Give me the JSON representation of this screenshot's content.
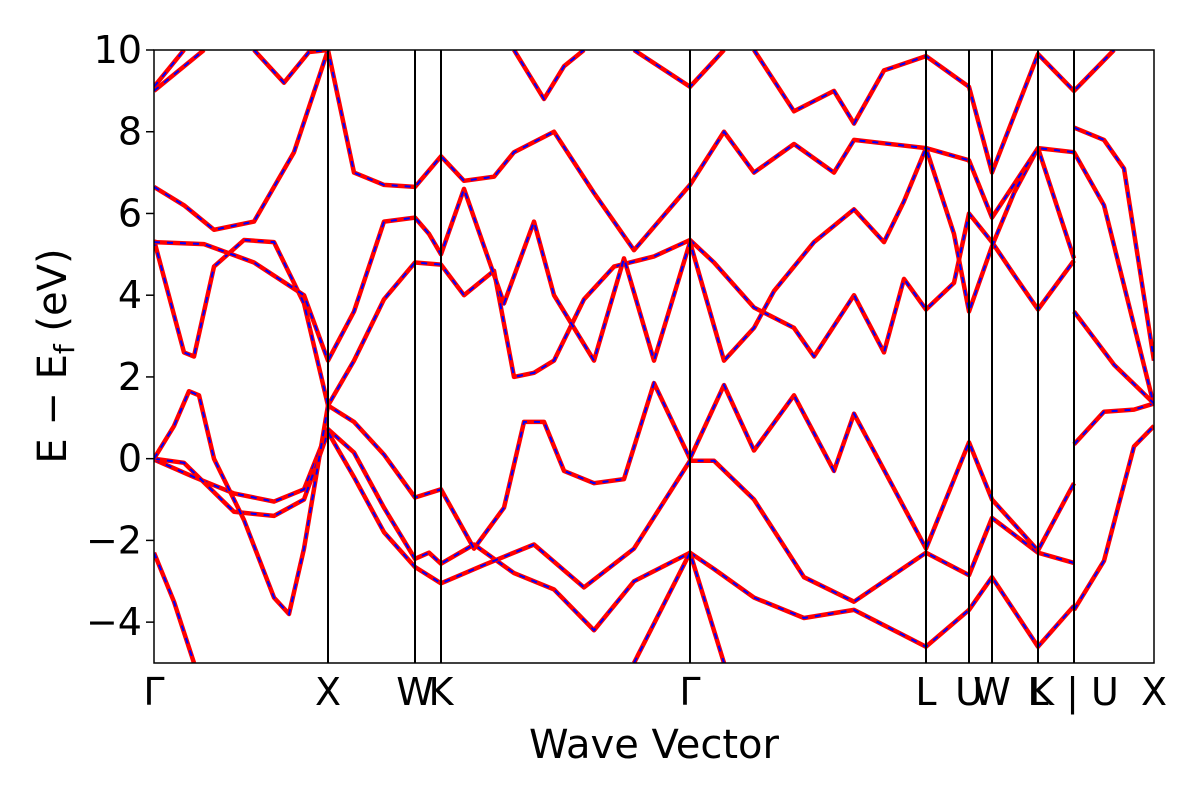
{
  "chart_data": {
    "type": "line",
    "title": "",
    "xlabel": "Wave Vector",
    "ylabel": "E − E",
    "ylabel_subscript": "f",
    "ylabel_unit": " (eV)",
    "ylim": [
      -5,
      10
    ],
    "yticks": [
      {
        "value": 10,
        "label": "10"
      },
      {
        "value": 8,
        "label": "8"
      },
      {
        "value": 6,
        "label": "6"
      },
      {
        "value": 4,
        "label": "4"
      },
      {
        "value": 2,
        "label": "2"
      },
      {
        "value": 0,
        "label": "0"
      },
      {
        "value": -2,
        "label": "−2"
      },
      {
        "value": -4,
        "label": "−4"
      }
    ],
    "xlim": [
      0,
      1
    ],
    "kpoints": [
      {
        "label": "Γ",
        "x": 0.0
      },
      {
        "label": "X",
        "x": 0.174
      },
      {
        "label": "W",
        "x": 0.261
      },
      {
        "label": "K",
        "x": 0.287
      },
      {
        "label": "Γ",
        "x": 0.536
      },
      {
        "label": "L",
        "x": 0.772
      },
      {
        "label": "U",
        "x": 0.815
      },
      {
        "label": "W",
        "x": 0.838
      },
      {
        "label": "L",
        "x": 0.884
      },
      {
        "label": "K | U",
        "x": 0.92
      },
      {
        "label": "X",
        "x": 1.0
      }
    ],
    "colors": {
      "band": "#ff0000",
      "band_dashed": "#0000ff",
      "frame": "#000000"
    },
    "grid": false,
    "legend": "none",
    "series": [
      {
        "points": [
          [
            0.0,
            -0.02
          ],
          [
            0.04,
            -0.45
          ],
          [
            0.08,
            -0.85
          ],
          [
            0.12,
            -1.05
          ],
          [
            0.15,
            -0.75
          ],
          [
            0.174,
            0.72
          ],
          [
            0.2,
            0.15
          ],
          [
            0.23,
            -1.2
          ],
          [
            0.261,
            -2.45
          ],
          [
            0.275,
            -2.3
          ],
          [
            0.287,
            -2.57
          ],
          [
            0.32,
            -2.1
          ],
          [
            0.36,
            -2.8
          ],
          [
            0.4,
            -3.2
          ],
          [
            0.44,
            -4.2
          ],
          [
            0.48,
            -3.0
          ],
          [
            0.536,
            -2.3
          ],
          [
            0.56,
            -2.7
          ],
          [
            0.6,
            -3.4
          ],
          [
            0.65,
            -3.9
          ],
          [
            0.7,
            -3.7
          ],
          [
            0.772,
            -4.6
          ],
          [
            0.815,
            -3.7
          ],
          [
            0.838,
            -2.9
          ],
          [
            0.884,
            -4.6
          ],
          [
            0.92,
            -3.6
          ]
        ]
      },
      {
        "points": [
          [
            0.0,
            0.0
          ],
          [
            0.03,
            -0.1
          ],
          [
            0.08,
            -1.3
          ],
          [
            0.12,
            -1.4
          ],
          [
            0.15,
            -1.0
          ],
          [
            0.174,
            0.65
          ],
          [
            0.2,
            -0.45
          ],
          [
            0.23,
            -1.8
          ],
          [
            0.261,
            -2.65
          ],
          [
            0.287,
            -3.05
          ],
          [
            0.33,
            -2.6
          ],
          [
            0.38,
            -2.1
          ],
          [
            0.43,
            -3.15
          ],
          [
            0.48,
            -2.2
          ],
          [
            0.536,
            -0.05
          ],
          [
            0.56,
            -0.05
          ],
          [
            0.6,
            -1.0
          ],
          [
            0.65,
            -2.9
          ],
          [
            0.7,
            -3.5
          ],
          [
            0.772,
            -2.3
          ],
          [
            0.815,
            -2.85
          ],
          [
            0.838,
            -1.45
          ],
          [
            0.884,
            -2.3
          ],
          [
            0.92,
            -2.55
          ]
        ]
      },
      {
        "points": [
          [
            0.0,
            0.0
          ],
          [
            0.02,
            0.8
          ],
          [
            0.035,
            1.65
          ],
          [
            0.045,
            1.55
          ],
          [
            0.06,
            0.0
          ],
          [
            0.09,
            -1.5
          ],
          [
            0.12,
            -3.4
          ],
          [
            0.135,
            -3.8
          ],
          [
            0.15,
            -2.2
          ],
          [
            0.174,
            1.3
          ],
          [
            0.2,
            0.9
          ],
          [
            0.23,
            0.1
          ],
          [
            0.261,
            -0.95
          ],
          [
            0.287,
            -0.75
          ],
          [
            0.32,
            -2.2
          ],
          [
            0.35,
            -1.2
          ],
          [
            0.37,
            0.9
          ],
          [
            0.39,
            0.9
          ],
          [
            0.41,
            -0.3
          ],
          [
            0.44,
            -0.6
          ],
          [
            0.47,
            -0.5
          ],
          [
            0.5,
            1.85
          ],
          [
            0.536,
            0.0
          ],
          [
            0.57,
            1.8
          ],
          [
            0.6,
            0.2
          ],
          [
            0.64,
            1.55
          ],
          [
            0.68,
            -0.3
          ],
          [
            0.7,
            1.1
          ],
          [
            0.772,
            -2.2
          ],
          [
            0.815,
            0.4
          ],
          [
            0.838,
            -1.0
          ],
          [
            0.884,
            -2.25
          ],
          [
            0.92,
            -0.6
          ]
        ]
      },
      {
        "points": [
          [
            0.0,
            5.35
          ],
          [
            0.03,
            2.6
          ],
          [
            0.04,
            2.5
          ],
          [
            0.06,
            4.7
          ],
          [
            0.09,
            5.35
          ],
          [
            0.12,
            5.3
          ],
          [
            0.15,
            3.8
          ],
          [
            0.174,
            1.3
          ],
          [
            0.2,
            2.4
          ],
          [
            0.23,
            3.9
          ],
          [
            0.261,
            4.8
          ],
          [
            0.287,
            4.75
          ],
          [
            0.31,
            4.0
          ],
          [
            0.34,
            4.6
          ],
          [
            0.36,
            2.0
          ],
          [
            0.38,
            2.1
          ],
          [
            0.4,
            2.4
          ],
          [
            0.43,
            3.9
          ],
          [
            0.46,
            4.7
          ],
          [
            0.5,
            4.95
          ],
          [
            0.536,
            5.35
          ],
          [
            0.56,
            4.8
          ],
          [
            0.6,
            3.7
          ],
          [
            0.64,
            3.2
          ],
          [
            0.66,
            2.5
          ],
          [
            0.7,
            4.0
          ],
          [
            0.73,
            2.6
          ],
          [
            0.75,
            4.4
          ],
          [
            0.772,
            3.65
          ],
          [
            0.8,
            4.3
          ],
          [
            0.815,
            6.0
          ],
          [
            0.838,
            5.3
          ],
          [
            0.86,
            4.5
          ],
          [
            0.884,
            3.65
          ],
          [
            0.92,
            4.85
          ]
        ]
      },
      {
        "points": [
          [
            0.0,
            5.3
          ],
          [
            0.05,
            5.25
          ],
          [
            0.1,
            4.8
          ],
          [
            0.15,
            4.0
          ],
          [
            0.174,
            2.4
          ],
          [
            0.2,
            3.6
          ],
          [
            0.23,
            5.8
          ],
          [
            0.261,
            5.9
          ],
          [
            0.275,
            5.5
          ],
          [
            0.287,
            5.0
          ],
          [
            0.31,
            6.6
          ],
          [
            0.33,
            5.2
          ],
          [
            0.35,
            3.8
          ],
          [
            0.38,
            5.8
          ],
          [
            0.4,
            4.0
          ],
          [
            0.44,
            2.4
          ],
          [
            0.47,
            4.9
          ],
          [
            0.5,
            2.4
          ],
          [
            0.536,
            5.3
          ],
          [
            0.57,
            2.4
          ],
          [
            0.6,
            3.2
          ],
          [
            0.62,
            4.1
          ],
          [
            0.66,
            5.3
          ],
          [
            0.7,
            6.1
          ],
          [
            0.73,
            5.3
          ],
          [
            0.75,
            6.3
          ],
          [
            0.772,
            7.6
          ],
          [
            0.8,
            5.5
          ],
          [
            0.815,
            3.6
          ],
          [
            0.838,
            5.2
          ],
          [
            0.86,
            6.5
          ],
          [
            0.884,
            7.6
          ],
          [
            0.92,
            4.9
          ]
        ]
      },
      {
        "points": [
          [
            0.0,
            6.65
          ],
          [
            0.03,
            6.2
          ],
          [
            0.06,
            5.6
          ],
          [
            0.1,
            5.8
          ],
          [
            0.14,
            7.5
          ],
          [
            0.174,
            10.0
          ],
          [
            0.2,
            7.0
          ],
          [
            0.23,
            6.7
          ],
          [
            0.261,
            6.65
          ],
          [
            0.287,
            7.4
          ],
          [
            0.31,
            6.8
          ],
          [
            0.34,
            6.9
          ],
          [
            0.36,
            7.5
          ],
          [
            0.4,
            8.0
          ],
          [
            0.44,
            6.5
          ],
          [
            0.48,
            5.1
          ],
          [
            0.536,
            6.7
          ],
          [
            0.57,
            8.0
          ],
          [
            0.6,
            7.0
          ],
          [
            0.64,
            7.7
          ],
          [
            0.68,
            7.0
          ],
          [
            0.7,
            7.8
          ],
          [
            0.772,
            7.6
          ],
          [
            0.815,
            7.3
          ],
          [
            0.838,
            5.9
          ],
          [
            0.884,
            7.6
          ],
          [
            0.92,
            7.5
          ],
          [
            0.95,
            6.2
          ],
          [
            1.0,
            1.3
          ]
        ]
      },
      {
        "points": [
          [
            0.0,
            9.1
          ],
          [
            0.03,
            10.0
          ]
        ]
      },
      {
        "points": [
          [
            0.0,
            9.0
          ],
          [
            0.05,
            10.0
          ]
        ]
      },
      {
        "points": [
          [
            0.1,
            10.0
          ],
          [
            0.13,
            9.2
          ],
          [
            0.155,
            9.95
          ],
          [
            0.174,
            10.0
          ]
        ]
      },
      {
        "points": [
          [
            0.36,
            10.0
          ],
          [
            0.39,
            8.8
          ],
          [
            0.41,
            9.6
          ],
          [
            0.43,
            10.0
          ]
        ]
      },
      {
        "points": [
          [
            0.48,
            10.0
          ],
          [
            0.536,
            9.1
          ],
          [
            0.57,
            10.0
          ]
        ]
      },
      {
        "points": [
          [
            0.6,
            10.0
          ],
          [
            0.64,
            8.5
          ],
          [
            0.68,
            9.0
          ],
          [
            0.7,
            8.2
          ],
          [
            0.73,
            9.5
          ],
          [
            0.772,
            9.85
          ],
          [
            0.815,
            9.1
          ],
          [
            0.838,
            7.0
          ],
          [
            0.884,
            9.9
          ],
          [
            0.92,
            9.0
          ],
          [
            0.96,
            10.0
          ]
        ]
      },
      {
        "points": [
          [
            0.92,
            8.1
          ],
          [
            0.95,
            7.8
          ],
          [
            0.97,
            7.1
          ],
          [
            1.0,
            2.4
          ]
        ]
      },
      {
        "points": [
          [
            0.92,
            0.35
          ],
          [
            0.95,
            1.15
          ],
          [
            0.98,
            1.2
          ],
          [
            1.0,
            1.35
          ]
        ]
      },
      {
        "points": [
          [
            0.92,
            3.6
          ],
          [
            0.96,
            2.3
          ],
          [
            1.0,
            1.35
          ]
        ]
      },
      {
        "points": [
          [
            0.92,
            -3.7
          ],
          [
            0.95,
            -2.5
          ],
          [
            0.98,
            0.3
          ],
          [
            1.0,
            0.8
          ]
        ]
      },
      {
        "points": [
          [
            0.0,
            -2.3
          ],
          [
            0.02,
            -3.5
          ],
          [
            0.04,
            -5.0
          ]
        ]
      },
      {
        "points": [
          [
            0.48,
            -5.0
          ],
          [
            0.536,
            -2.3
          ],
          [
            0.57,
            -5.0
          ]
        ]
      }
    ]
  }
}
